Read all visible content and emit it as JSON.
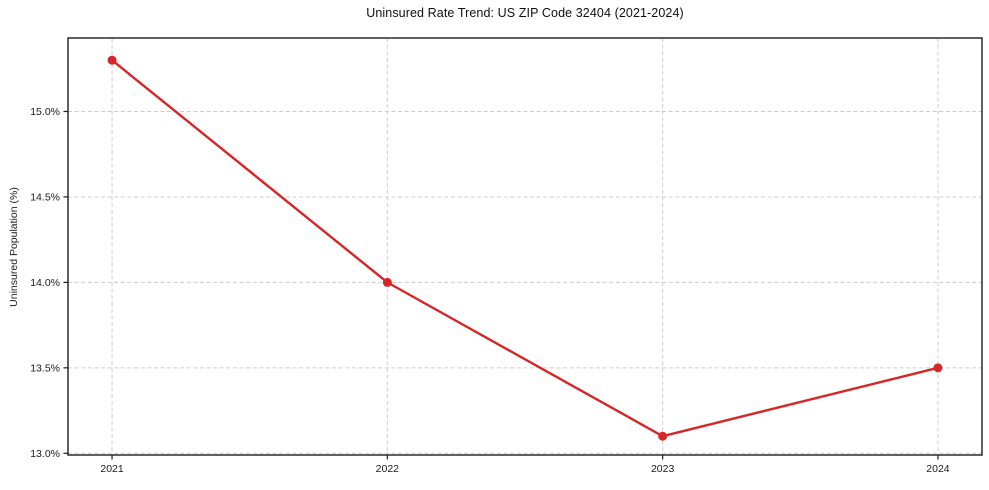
{
  "chart_data": {
    "type": "line",
    "title": "Uninsured Rate Trend: US ZIP Code 32404 (2021-2024)",
    "xlabel": "",
    "ylabel": "Uninsured Population (%)",
    "x": [
      2021,
      2022,
      2023,
      2024
    ],
    "series": [
      {
        "name": "Uninsured Population (%)",
        "values": [
          15.3,
          14.0,
          13.1,
          13.5
        ],
        "color": "#d62728",
        "marker": "circle",
        "line_width": 2.4,
        "marker_radius": 4.5
      }
    ],
    "xticks": [
      {
        "value": 2021,
        "label": "2021"
      },
      {
        "value": 2022,
        "label": "2022"
      },
      {
        "value": 2023,
        "label": "2023"
      },
      {
        "value": 2024,
        "label": "2024"
      }
    ],
    "yticks": [
      {
        "value": 13.0,
        "label": "13.0%"
      },
      {
        "value": 13.5,
        "label": "13.5%"
      },
      {
        "value": 14.0,
        "label": "14.0%"
      },
      {
        "value": 14.5,
        "label": "14.5%"
      },
      {
        "value": 15.0,
        "label": "15.0%"
      }
    ],
    "xlim": [
      2020.84,
      2024.16
    ],
    "ylim": [
      12.99,
      15.43
    ],
    "grid": true,
    "grid_style": "dashed",
    "legend": "none"
  },
  "colors": {
    "line": "#d62728",
    "grid": "#cccccc",
    "axis": "#1c1c1c",
    "tick_text": "#1a1a1a",
    "background": "#ffffff"
  }
}
